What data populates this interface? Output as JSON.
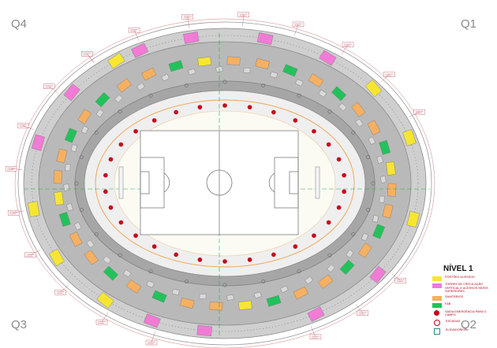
{
  "quadrants": {
    "q1": "Q1",
    "q2": "Q2",
    "q3": "Q3",
    "q4": "Q4"
  },
  "legend": {
    "title": "NÍVEL 1",
    "items": [
      {
        "label": "PORTÕES ACESSOS",
        "color": "#f6e632"
      },
      {
        "label": "TORRES DE CIRCULAÇÃO VERTICAL E ACESSOS NÍVEIS SUPERIORES",
        "color": "#f27bd6"
      },
      {
        "label": "SANITÁRIOS",
        "color": "#f6b061"
      },
      {
        "label": "F&B",
        "color": "#22c25a"
      }
    ],
    "symbols": [
      {
        "label": "SAÍDA EMERGÊNCIA PARA O CAMPO",
        "icon": "red-dot-icon"
      },
      {
        "label": "ESCADAS",
        "icon": "stair-ring-icon"
      },
      {
        "label": "ELEVADORES",
        "icon": "elevator-square-icon"
      }
    ]
  },
  "colors": {
    "concourse": "#b9b9b9",
    "outer_ring": "#cfcfcf",
    "stands": "#eeeeee",
    "field": "#ffffff",
    "field_lines": "#7a7a7a",
    "exit_dot": "#c8001a",
    "axis": "#2fa84a"
  }
}
